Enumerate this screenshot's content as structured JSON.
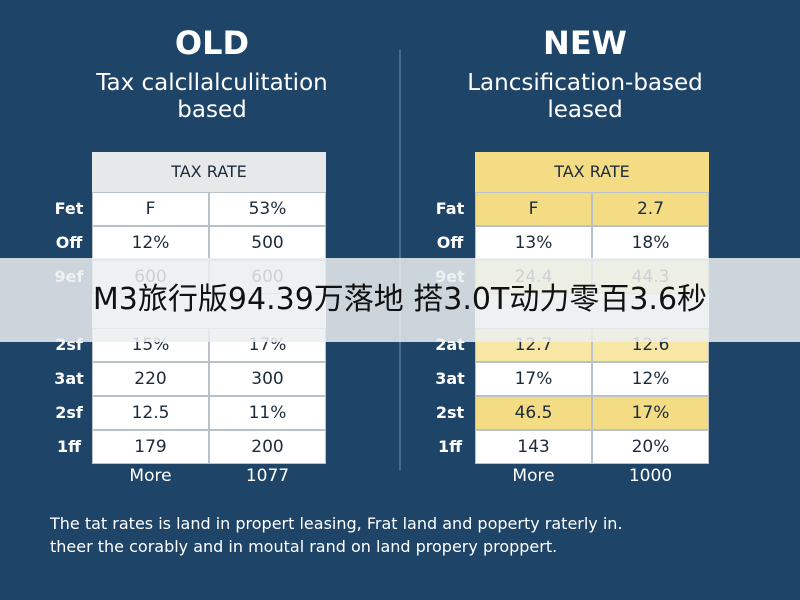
{
  "old": {
    "heading": "OLD",
    "subtitle": [
      "Tax calcllalculitation",
      "based"
    ],
    "table": {
      "header": "TAX RATE",
      "rows": [
        [
          "Fet",
          "F",
          "53%"
        ],
        [
          "Off",
          "12%",
          "500"
        ],
        [
          "9ef",
          "600",
          "600"
        ],
        [
          "2sf",
          "15%",
          "17%"
        ],
        [
          "3at",
          "220",
          "300"
        ],
        [
          "2sf",
          "12.5",
          "11%"
        ],
        [
          "1ff",
          "179",
          "200"
        ]
      ],
      "footer": [
        "More",
        "1077"
      ]
    }
  },
  "new": {
    "heading": "NEW",
    "subtitle": [
      "Lancsification-based",
      "leased"
    ],
    "table": {
      "header": "TAX RATE",
      "rows": [
        [
          "Fat",
          "F",
          "2.7"
        ],
        [
          "Off",
          "13%",
          "18%"
        ],
        [
          "9et",
          "24.4",
          "44.3"
        ],
        [
          "2at",
          "12.7",
          "12.6"
        ],
        [
          "3at",
          "17%",
          "12%"
        ],
        [
          "2st",
          "46.5",
          "17%"
        ],
        [
          "1ff",
          "143",
          "20%"
        ]
      ],
      "footer": [
        "More",
        "1000"
      ]
    }
  },
  "note": [
    "The tat rates is land in propert leasing, Frat land and poperty raterly in.",
    "theer the corably and in moutal rand on land propery proppert."
  ],
  "banner": "M3旅行版94.39万落地 搭3.0T动力零百3.6秒"
}
